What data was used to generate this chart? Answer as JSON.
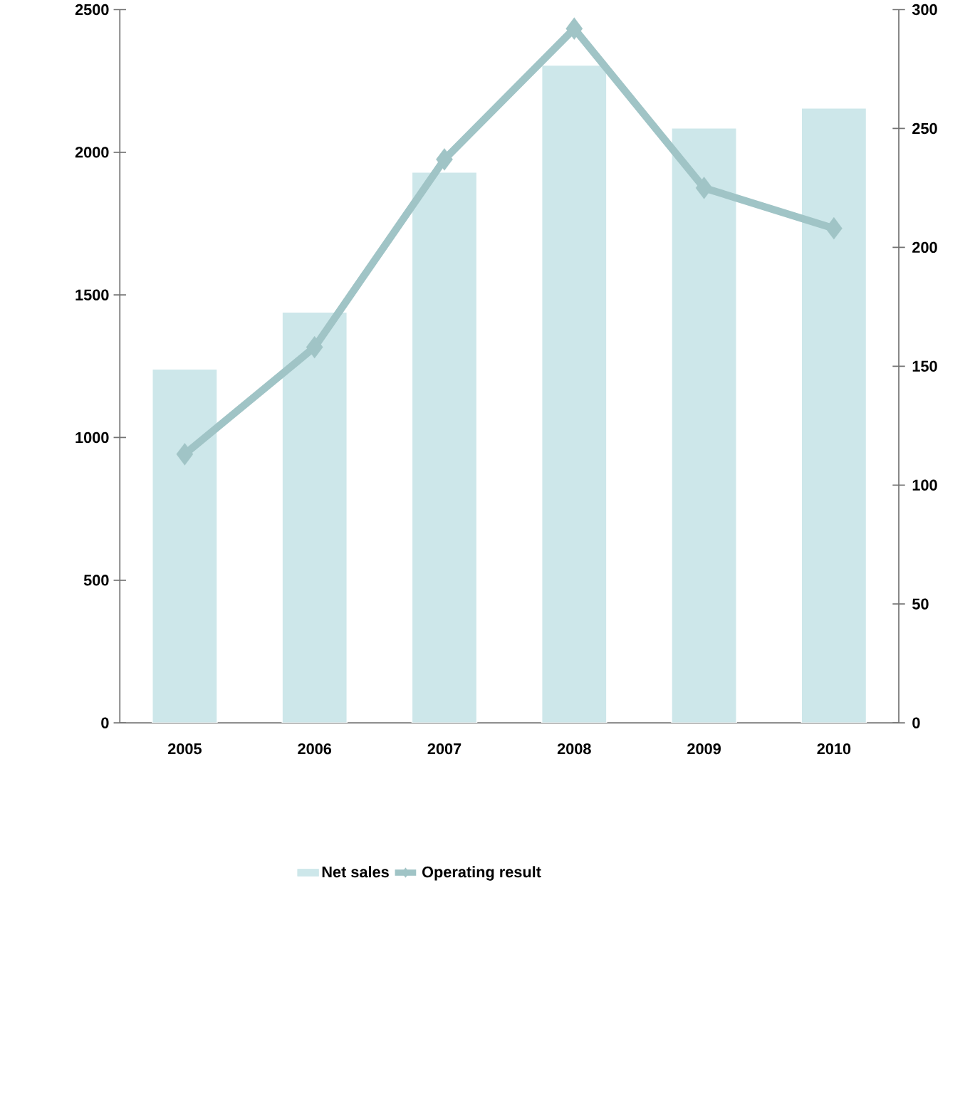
{
  "chart_data": {
    "type": "bar",
    "categories": [
      "2005",
      "2006",
      "2007",
      "2008",
      "2009",
      "2010"
    ],
    "series": [
      {
        "name": "Net sales",
        "color": "#cde7ea",
        "values": [
          1240,
          1440,
          1930,
          2305,
          2085,
          2155
        ]
      },
      {
        "name": "Operating result",
        "type": "line",
        "axis": "y2",
        "color": "#a0c4c6",
        "values": [
          113,
          158,
          237,
          292,
          225,
          208
        ]
      }
    ],
    "marker": "diamond",
    "ylim": [
      0,
      2500
    ],
    "yticks": [
      0,
      500,
      1000,
      1500,
      2000,
      2500
    ],
    "y2lim": [
      0,
      300
    ],
    "y2ticks": [
      0,
      50,
      100,
      150,
      200,
      250,
      300
    ],
    "legend": "bottom"
  }
}
